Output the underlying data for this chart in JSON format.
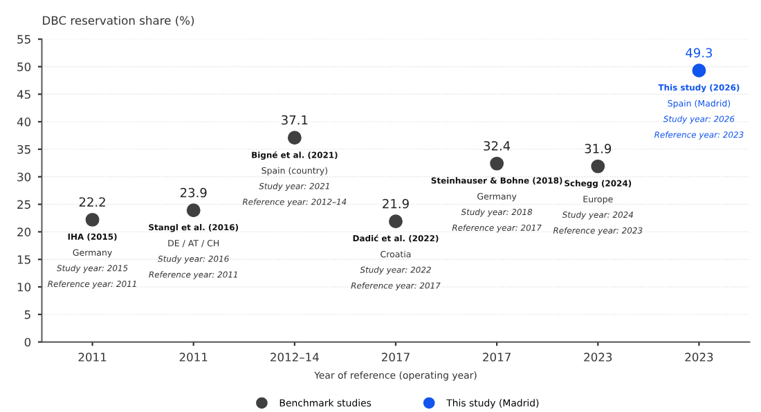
{
  "chart_data": {
    "type": "scatter",
    "ylabel": "DBC reservation share (%)",
    "xlabel": "Year of reference (operating year)",
    "categories": [
      "2011",
      "2011",
      "2012–14",
      "2017",
      "2017",
      "2023",
      "2023"
    ],
    "series": [
      {
        "name": "Benchmark studies",
        "color": "#404040",
        "values": [
          22.2,
          23.9,
          37.1,
          21.9,
          32.4,
          31.9,
          null
        ]
      },
      {
        "name": "This study (Madrid)",
        "color": "#1155ee",
        "values": [
          null,
          null,
          null,
          null,
          null,
          null,
          49.3
        ]
      }
    ],
    "ylim": [
      0,
      55
    ],
    "yticks": [
      0,
      5,
      10,
      15,
      20,
      25,
      30,
      35,
      40,
      45,
      50,
      55
    ],
    "grid": "y",
    "legend": "bottom",
    "marker": "circle",
    "data_labels": true,
    "annotations": [
      "IHA (2015)\nGermany\nStudy year: 2015\nReference year: 2011",
      "Stangl et al. (2016)\nDE / AT / CH\nStudy year: 2016\nReference year: 2011",
      "Bigné et al. (2021)\nSpain (country)\nStudy year: 2021\nReference year: 2012–14",
      "Dadić et al. (2022)\nCroatia\nStudy year: 2022\nReference year: 2017",
      "Steinhauser & Bohne (2018)\nGermany\nStudy year: 2018\nReference year: 2017",
      "Schegg (2024)\nEurope\nStudy year: 2024\nReference year: 2023",
      "This study (2026)\nSpain (Madrid)\nStudy year: 2026\nReference year: 2023"
    ]
  }
}
